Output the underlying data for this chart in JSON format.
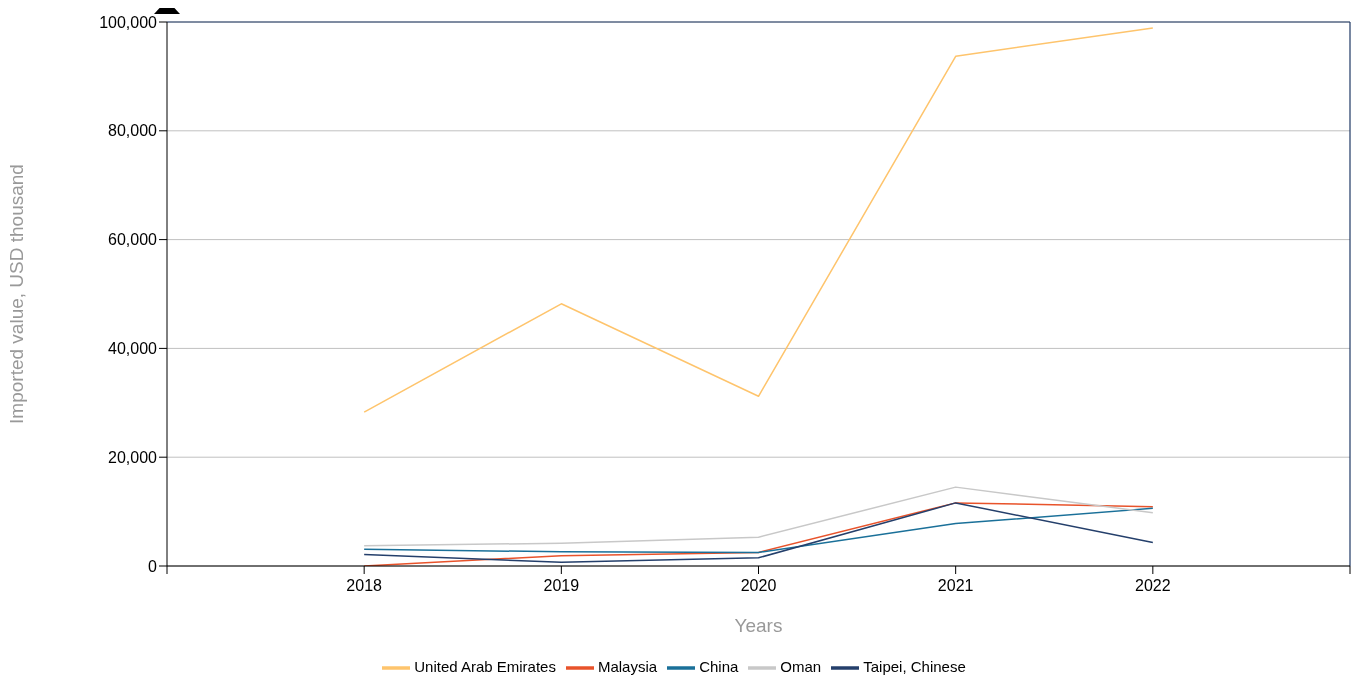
{
  "chart_data": {
    "type": "line",
    "xlabel": "Years",
    "ylabel": "Imported value, USD thousand",
    "x": [
      2018,
      2019,
      2020,
      2021,
      2022
    ],
    "series": [
      {
        "name": "United Arab Emirates",
        "color": "#fec46c",
        "values": [
          28300,
          48200,
          31200,
          93700,
          98900
        ]
      },
      {
        "name": "Malaysia",
        "color": "#e8532b",
        "values": [
          0,
          1900,
          2500,
          11600,
          10900
        ]
      },
      {
        "name": "China",
        "color": "#1a7099",
        "values": [
          3100,
          2600,
          2500,
          7800,
          10600
        ]
      },
      {
        "name": "Oman",
        "color": "#c8c8c8",
        "values": [
          3700,
          4200,
          5300,
          14500,
          9800
        ]
      },
      {
        "name": "Taipei, Chinese",
        "color": "#243f6b",
        "values": [
          2100,
          700,
          1500,
          11600,
          4300
        ]
      }
    ],
    "xlim": [
      2017,
      2023
    ],
    "xticks": [
      {
        "value": 2017,
        "label": null
      },
      2018,
      2019,
      2020,
      2021,
      2022,
      {
        "value": 2023,
        "label": null
      }
    ],
    "ylim": [
      0,
      100000
    ],
    "yticks": [
      0,
      {
        "value": 20000,
        "label": "20,000"
      },
      {
        "value": 40000,
        "label": "40,000"
      },
      {
        "value": 60000,
        "label": "60,000"
      },
      {
        "value": 80000,
        "label": "80,000"
      },
      {
        "value": 100000,
        "label": "100,000"
      }
    ],
    "grid": "y",
    "legend": "bottom",
    "marker": "none",
    "line_style": "solid"
  }
}
